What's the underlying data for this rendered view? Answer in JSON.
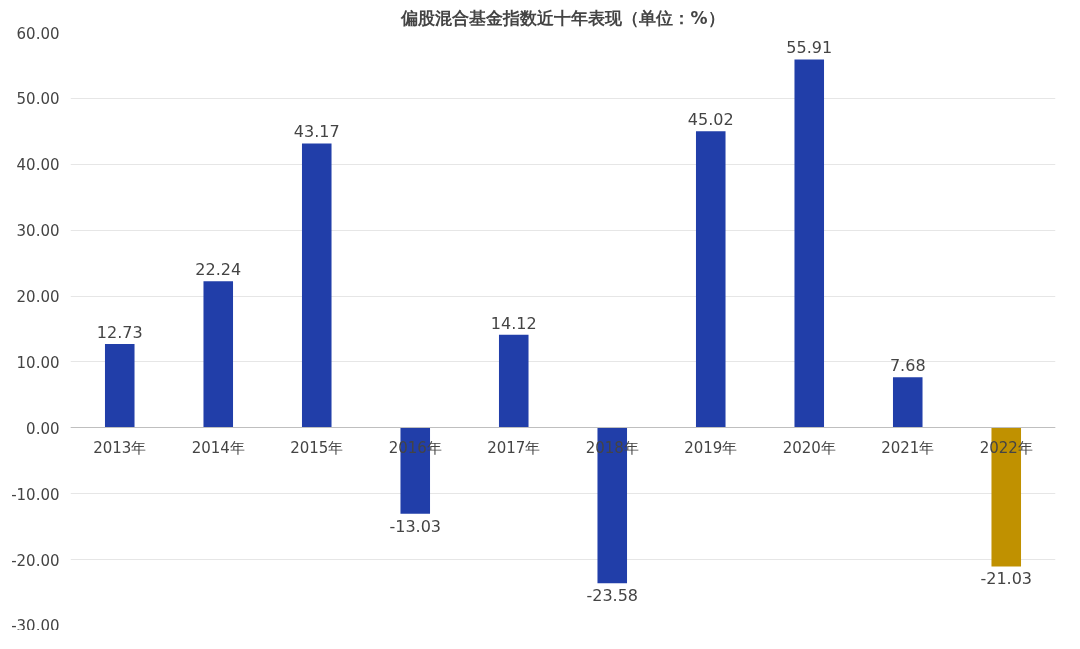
{
  "chart_data": {
    "type": "bar",
    "title": "偏股混合基金指数近十年表现（单位：%）",
    "categories": [
      "2013年",
      "2014年",
      "2015年",
      "2016年",
      "2017年",
      "2018年",
      "2019年",
      "2020年",
      "2021年",
      "2022年"
    ],
    "values": [
      12.73,
      22.24,
      43.17,
      -13.03,
      14.12,
      -23.58,
      45.02,
      55.91,
      7.68,
      -21.03
    ],
    "colors": [
      "#213ea9",
      "#213ea9",
      "#213ea9",
      "#213ea9",
      "#213ea9",
      "#213ea9",
      "#213ea9",
      "#213ea9",
      "#213ea9",
      "#c09100"
    ],
    "ylim": [
      -30,
      60
    ],
    "yticks": [
      {
        "value": -30,
        "label": "-30.00"
      },
      {
        "value": -20,
        "label": "-20.00"
      },
      {
        "value": -10,
        "label": "-10.00"
      },
      {
        "value": 0,
        "label": "0.00"
      },
      {
        "value": 10,
        "label": "10.00"
      },
      {
        "value": 20,
        "label": "20.00"
      },
      {
        "value": 30,
        "label": "30.00"
      },
      {
        "value": 40,
        "label": "40.00"
      },
      {
        "value": 50,
        "label": "50.00"
      },
      {
        "value": 60,
        "label": "60.00"
      }
    ],
    "grid": "y",
    "data_labels": true
  }
}
